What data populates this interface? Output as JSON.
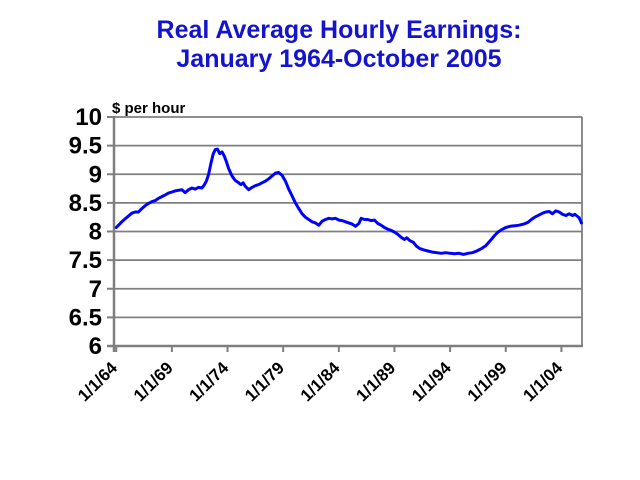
{
  "title": {
    "line1": "Real Average Hourly Earnings:",
    "line2": "January 1964-October 2005"
  },
  "colors": {
    "title": "#1414CC",
    "line": "#0000FF",
    "grid": "#7F7F7F",
    "axis": "#7F7F7F",
    "text": "#000000",
    "background": "#FFFFFF"
  },
  "chart_data": {
    "type": "line",
    "title": "Real Average Hourly Earnings: January 1964-October 2005",
    "ylabel": "$ per hour",
    "xlabel": "",
    "ylim": [
      6,
      10
    ],
    "xlim": [
      1963.8,
      2005.85
    ],
    "y_ticks": [
      6,
      6.5,
      7,
      7.5,
      8,
      8.5,
      9,
      9.5,
      10
    ],
    "y_tick_labels": [
      "6",
      "6.5",
      "7",
      "7.5",
      "8",
      "8.5",
      "9",
      "9.5",
      "10"
    ],
    "x_ticks": [
      1964,
      1969,
      1974,
      1979,
      1984,
      1989,
      1994,
      1999,
      2004
    ],
    "x_tick_labels": [
      "1/1/64",
      "1/1/69",
      "1/1/74",
      "1/1/79",
      "1/1/84",
      "1/1/89",
      "1/1/94",
      "1/1/99",
      "1/1/04"
    ],
    "grid": "horizontal",
    "legend": "none",
    "series": [
      {
        "name": "Real average hourly earnings ($ per hour)",
        "x": [
          1964.0,
          1964.2,
          1964.5,
          1964.8,
          1965.1,
          1965.4,
          1965.7,
          1966.0,
          1966.3,
          1966.6,
          1966.9,
          1967.2,
          1967.5,
          1967.8,
          1968.1,
          1968.4,
          1968.7,
          1969.0,
          1969.3,
          1969.6,
          1969.9,
          1970.2,
          1970.5,
          1970.8,
          1971.1,
          1971.4,
          1971.7,
          1971.9,
          1972.1,
          1972.3,
          1972.5,
          1972.7,
          1972.9,
          1973.1,
          1973.3,
          1973.5,
          1973.7,
          1973.9,
          1974.1,
          1974.4,
          1974.7,
          1975.0,
          1975.2,
          1975.4,
          1975.6,
          1975.9,
          1976.2,
          1976.5,
          1976.8,
          1977.1,
          1977.4,
          1977.7,
          1978.0,
          1978.3,
          1978.6,
          1978.9,
          1979.2,
          1979.5,
          1979.8,
          1980.1,
          1980.4,
          1980.7,
          1981.0,
          1981.3,
          1981.6,
          1981.9,
          1982.2,
          1982.5,
          1982.8,
          1983.1,
          1983.4,
          1983.7,
          1984.0,
          1984.3,
          1984.6,
          1984.9,
          1985.2,
          1985.5,
          1985.8,
          1986.0,
          1986.3,
          1986.6,
          1986.9,
          1987.2,
          1987.5,
          1987.8,
          1988.1,
          1988.4,
          1988.7,
          1989.0,
          1989.3,
          1989.6,
          1989.9,
          1990.1,
          1990.4,
          1990.7,
          1991.0,
          1991.3,
          1991.6,
          1992.0,
          1992.4,
          1992.8,
          1993.2,
          1993.6,
          1994.0,
          1994.4,
          1994.8,
          1995.2,
          1995.6,
          1996.0,
          1996.4,
          1996.8,
          1997.2,
          1997.6,
          1998.0,
          1998.3,
          1998.6,
          1999.0,
          1999.4,
          1999.8,
          2000.2,
          2000.6,
          2001.0,
          2001.3,
          2001.6,
          2002.0,
          2002.3,
          2002.6,
          2002.9,
          2003.2,
          2003.5,
          2003.8,
          2004.1,
          2004.4,
          2004.7,
          2005.0,
          2005.2,
          2005.4,
          2005.6,
          2005.8
        ],
        "y": [
          8.07,
          8.11,
          8.17,
          8.22,
          8.27,
          8.32,
          8.34,
          8.34,
          8.4,
          8.45,
          8.49,
          8.52,
          8.54,
          8.58,
          8.61,
          8.64,
          8.67,
          8.69,
          8.71,
          8.72,
          8.73,
          8.68,
          8.73,
          8.76,
          8.74,
          8.77,
          8.76,
          8.81,
          8.88,
          9.0,
          9.18,
          9.35,
          9.43,
          9.44,
          9.36,
          9.39,
          9.32,
          9.22,
          9.1,
          8.97,
          8.89,
          8.85,
          8.82,
          8.85,
          8.79,
          8.73,
          8.77,
          8.8,
          8.82,
          8.85,
          8.88,
          8.92,
          8.97,
          9.02,
          9.03,
          8.98,
          8.88,
          8.74,
          8.62,
          8.5,
          8.4,
          8.31,
          8.25,
          8.21,
          8.17,
          8.15,
          8.11,
          8.18,
          8.21,
          8.23,
          8.22,
          8.23,
          8.2,
          8.19,
          8.17,
          8.15,
          8.13,
          8.09,
          8.14,
          8.23,
          8.21,
          8.21,
          8.19,
          8.2,
          8.14,
          8.11,
          8.07,
          8.04,
          8.02,
          7.99,
          7.95,
          7.9,
          7.86,
          7.89,
          7.84,
          7.81,
          7.74,
          7.7,
          7.68,
          7.66,
          7.64,
          7.63,
          7.62,
          7.63,
          7.62,
          7.61,
          7.62,
          7.6,
          7.62,
          7.63,
          7.66,
          7.7,
          7.75,
          7.84,
          7.93,
          7.99,
          8.03,
          8.07,
          8.09,
          8.1,
          8.11,
          8.13,
          8.16,
          8.21,
          8.25,
          8.29,
          8.32,
          8.34,
          8.35,
          8.31,
          8.36,
          8.34,
          8.3,
          8.28,
          8.31,
          8.28,
          8.3,
          8.27,
          8.24,
          8.15
        ]
      }
    ]
  }
}
